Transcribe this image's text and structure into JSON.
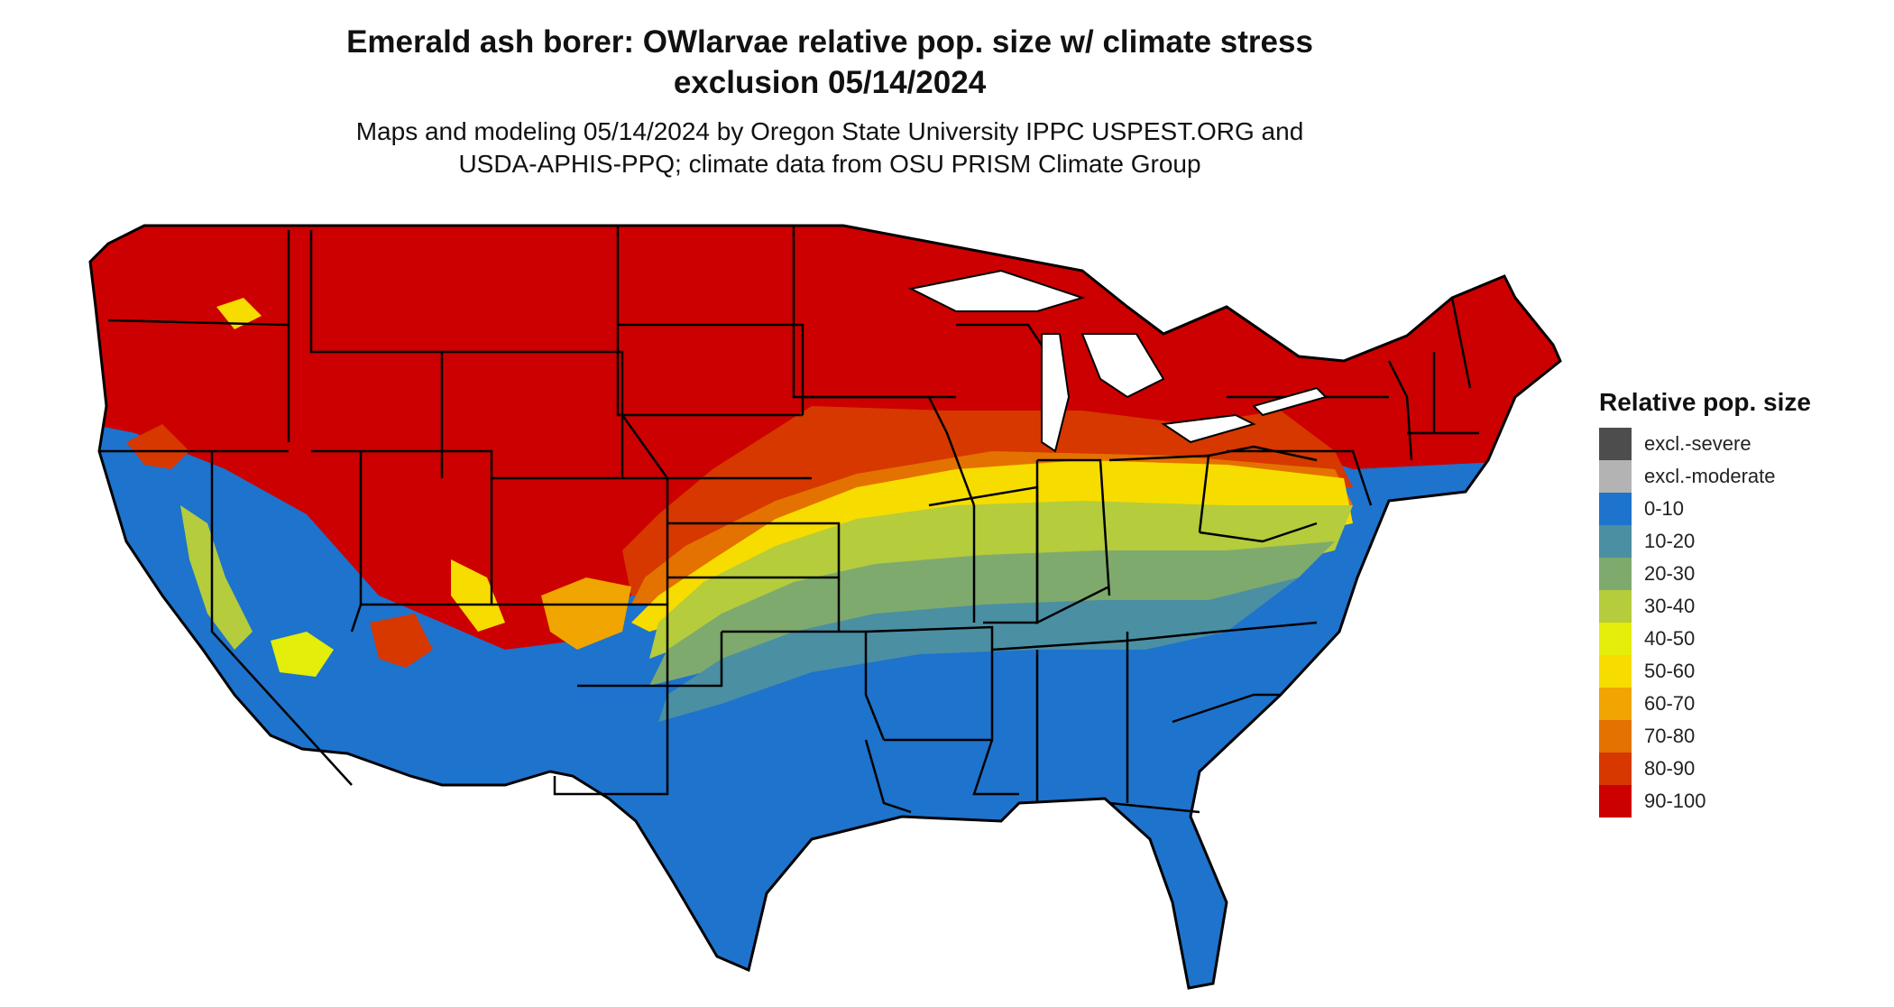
{
  "title_line1": "Emerald ash borer: OWlarvae relative pop. size w/ climate stress",
  "title_line2": "exclusion 05/14/2024",
  "subtitle_line1": "Maps and modeling 05/14/2024 by Oregon State University IPPC USPEST.ORG and",
  "subtitle_line2": "USDA-APHIS-PPQ; climate data from OSU PRISM Climate Group",
  "legend": {
    "title": "Relative pop. size",
    "items": [
      {
        "label": "excl.-severe",
        "color": "#4d4d4d"
      },
      {
        "label": "excl.-moderate",
        "color": "#b3b3b3"
      },
      {
        "label": "0-10",
        "color": "#1e73cc"
      },
      {
        "label": "10-20",
        "color": "#4b8fa3"
      },
      {
        "label": "20-30",
        "color": "#7faa6e"
      },
      {
        "label": "30-40",
        "color": "#b5cc3c"
      },
      {
        "label": "40-50",
        "color": "#e3ee0a"
      },
      {
        "label": "50-60",
        "color": "#f7dc00"
      },
      {
        "label": "60-70",
        "color": "#f0a500"
      },
      {
        "label": "70-80",
        "color": "#e47200"
      },
      {
        "label": "80-90",
        "color": "#d63800"
      },
      {
        "label": "90-100",
        "color": "#cc0000"
      }
    ]
  }
}
